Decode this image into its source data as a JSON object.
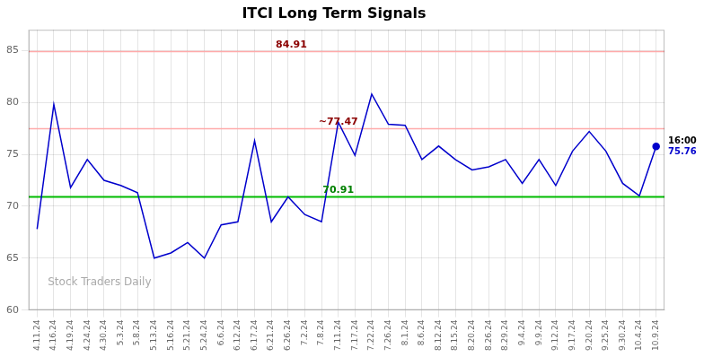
{
  "chart_data": {
    "type": "line",
    "title": "ITCI Long Term Signals",
    "watermark": "Stock Traders Daily",
    "categories": [
      "4.11.24",
      "4.16.24",
      "4.19.24",
      "4.24.24",
      "4.30.24",
      "5.3.24",
      "5.8.24",
      "5.13.24",
      "5.16.24",
      "5.21.24",
      "5.24.24",
      "6.6.24",
      "6.12.24",
      "6.17.24",
      "6.21.24",
      "6.26.24",
      "7.2.24",
      "7.8.24",
      "7.11.24",
      "7.17.24",
      "7.22.24",
      "7.26.24",
      "8.1.24",
      "8.6.24",
      "8.12.24",
      "8.15.24",
      "8.20.24",
      "8.26.24",
      "8.29.24",
      "9.4.24",
      "9.9.24",
      "9.12.24",
      "9.17.24",
      "9.20.24",
      "9.25.24",
      "9.30.24",
      "10.4.24",
      "10.9.24"
    ],
    "values": [
      67.8,
      79.8,
      71.8,
      74.5,
      72.5,
      72.0,
      71.3,
      65.0,
      65.5,
      66.5,
      65.0,
      68.2,
      68.5,
      76.3,
      68.5,
      70.9,
      69.2,
      68.5,
      78.1,
      74.9,
      80.8,
      77.9,
      77.8,
      74.5,
      75.8,
      74.5,
      73.5,
      73.8,
      74.5,
      72.2,
      74.5,
      72.0,
      75.3,
      77.2,
      75.3,
      72.2,
      71.0,
      75.76
    ],
    "color": "#0000cc",
    "reference_lines": [
      {
        "value": 84.91,
        "label": "84.91",
        "color": "#ffaaaa",
        "label_color": "darkred"
      },
      {
        "value": 77.47,
        "label": "~77.47",
        "color": "#ffaaaa",
        "label_color": "darkred"
      },
      {
        "value": 70.91,
        "label": "70.91",
        "color": "#00bb00",
        "label_color": "green"
      }
    ],
    "last_point": {
      "time": "16:00",
      "value": 75.76,
      "color": "#0000cc",
      "marker": "circle"
    },
    "ylim": [
      60,
      87
    ],
    "yticks": [
      60,
      65,
      70,
      75,
      80,
      85
    ],
    "grid": true
  }
}
